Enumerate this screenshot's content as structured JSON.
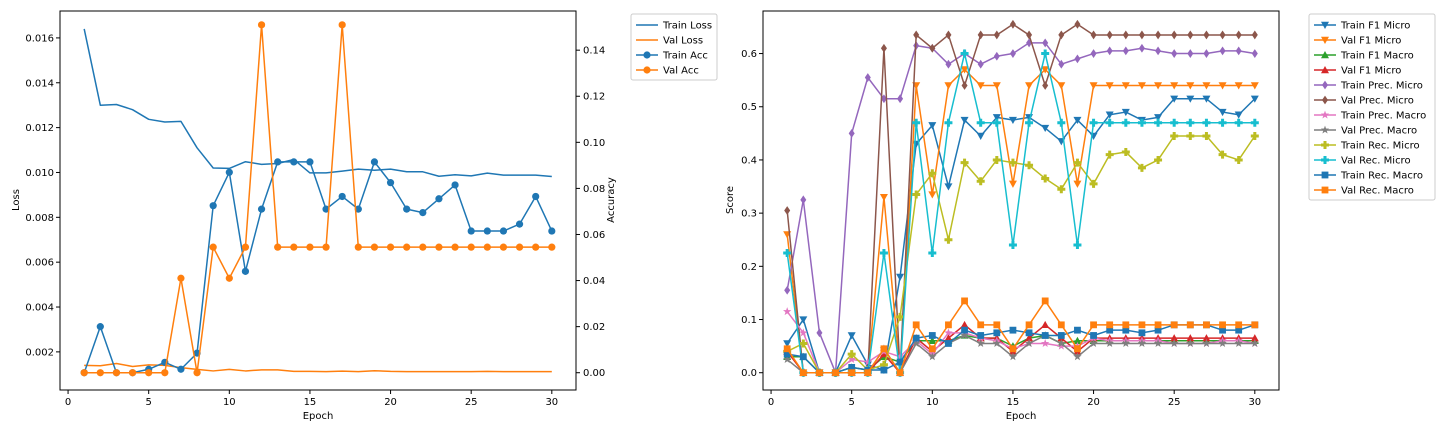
{
  "chart_data": [
    {
      "type": "line",
      "xlabel": "Epoch",
      "ylabel": "Loss",
      "y2label": "Accuracy",
      "xlim": [
        -0.5,
        31.5
      ],
      "ylim": [
        0.0003,
        0.0172
      ],
      "y2lim": [
        -0.0075,
        0.157
      ],
      "xticks": [
        0,
        5,
        10,
        15,
        20,
        25,
        30
      ],
      "yticks": [
        0.002,
        0.004,
        0.006,
        0.008,
        0.01,
        0.012,
        0.014,
        0.016
      ],
      "ytick_labels": [
        "0.002",
        "0.004",
        "0.006",
        "0.008",
        "0.010",
        "0.012",
        "0.014",
        "0.016"
      ],
      "y2ticks": [
        0.0,
        0.02,
        0.04,
        0.06,
        0.08,
        0.1,
        0.12,
        0.14
      ],
      "y2tick_labels": [
        "0.00",
        "0.02",
        "0.04",
        "0.06",
        "0.08",
        "0.10",
        "0.12",
        "0.14"
      ],
      "legend_position": "outside-top-right",
      "grid": false,
      "x": [
        1,
        2,
        3,
        4,
        5,
        6,
        7,
        8,
        9,
        10,
        11,
        12,
        13,
        14,
        15,
        16,
        17,
        18,
        19,
        20,
        21,
        22,
        23,
        24,
        25,
        26,
        27,
        28,
        29,
        30
      ],
      "series": [
        {
          "name": "Train Loss",
          "axis": "left",
          "color": "#1f77b4",
          "marker": "none",
          "values": [
            0.0164,
            0.013,
            0.01303,
            0.0128,
            0.01237,
            0.01225,
            0.01228,
            0.0111,
            0.0102,
            0.01018,
            0.01048,
            0.01036,
            0.0104,
            0.01058,
            0.00998,
            0.00998,
            0.01006,
            0.01015,
            0.0101,
            0.01015,
            0.01003,
            0.01003,
            0.00983,
            0.0099,
            0.00985,
            0.00997,
            0.00988,
            0.00988,
            0.00988,
            0.00982
          ]
        },
        {
          "name": "Val Loss",
          "axis": "left",
          "color": "#ff7f0e",
          "marker": "none",
          "values": [
            0.0014,
            0.00138,
            0.00148,
            0.00135,
            0.00142,
            0.0014,
            0.0013,
            0.00122,
            0.00115,
            0.00122,
            0.00115,
            0.0012,
            0.0012,
            0.00113,
            0.00113,
            0.00112,
            0.00114,
            0.00112,
            0.00116,
            0.00113,
            0.00112,
            0.00112,
            0.00112,
            0.00112,
            0.00112,
            0.00113,
            0.00112,
            0.00112,
            0.00112,
            0.00112
          ]
        },
        {
          "name": "Train Acc",
          "axis": "right",
          "color": "#1f77b4",
          "marker": "circle",
          "values": [
            0.0,
            0.02,
            0.0,
            0.0,
            0.0015,
            0.0045,
            0.0015,
            0.0085,
            0.0725,
            0.087,
            0.044,
            0.071,
            0.0915,
            0.0915,
            0.0915,
            0.071,
            0.0765,
            0.071,
            0.0915,
            0.0825,
            0.071,
            0.0695,
            0.0755,
            0.0815,
            0.0615,
            0.0615,
            0.0615,
            0.0645,
            0.0765,
            0.0615
          ]
        },
        {
          "name": "Val Acc",
          "axis": "right",
          "color": "#ff7f0e",
          "marker": "circle",
          "values": [
            0.0,
            0.0,
            0.0,
            0.0,
            0.0,
            0.0,
            0.041,
            0.0,
            0.0545,
            0.041,
            0.0545,
            0.151,
            0.0545,
            0.0545,
            0.0545,
            0.0545,
            0.151,
            0.0545,
            0.0545,
            0.0545,
            0.0545,
            0.0545,
            0.0545,
            0.0545,
            0.0545,
            0.0545,
            0.0545,
            0.0545,
            0.0545,
            0.0545
          ]
        }
      ]
    },
    {
      "type": "line",
      "xlabel": "Epoch",
      "ylabel": "Score",
      "xlim": [
        -0.5,
        31.5
      ],
      "ylim": [
        -0.0325,
        0.68
      ],
      "xticks": [
        0,
        5,
        10,
        15,
        20,
        25,
        30
      ],
      "yticks": [
        0.0,
        0.1,
        0.2,
        0.3,
        0.4,
        0.5,
        0.6
      ],
      "ytick_labels": [
        "0.0",
        "0.1",
        "0.2",
        "0.3",
        "0.4",
        "0.5",
        "0.6"
      ],
      "legend_position": "outside-top-right",
      "grid": false,
      "x": [
        1,
        2,
        3,
        4,
        5,
        6,
        7,
        8,
        9,
        10,
        11,
        12,
        13,
        14,
        15,
        16,
        17,
        18,
        19,
        20,
        21,
        22,
        23,
        24,
        25,
        26,
        27,
        28,
        29,
        30
      ],
      "series": [
        {
          "name": "Train F1 Micro",
          "color": "#1f77b4",
          "marker": "tri-down",
          "values": [
            0.055,
            0.1,
            0.0,
            0.0,
            0.07,
            0.015,
            0.005,
            0.18,
            0.43,
            0.465,
            0.35,
            0.475,
            0.445,
            0.48,
            0.475,
            0.48,
            0.46,
            0.435,
            0.475,
            0.445,
            0.485,
            0.49,
            0.475,
            0.48,
            0.515,
            0.515,
            0.515,
            0.49,
            0.485,
            0.515
          ]
        },
        {
          "name": "Val F1 Micro",
          "color": "#ff7f0e",
          "marker": "tri-down",
          "values": [
            0.26,
            0.0,
            0.0,
            0.0,
            0.0,
            0.0,
            0.33,
            0.0,
            0.54,
            0.335,
            0.54,
            0.57,
            0.54,
            0.54,
            0.355,
            0.54,
            0.57,
            0.54,
            0.355,
            0.54,
            0.54,
            0.54,
            0.54,
            0.54,
            0.54,
            0.54,
            0.54,
            0.54,
            0.54,
            0.54
          ]
        },
        {
          "name": "Train F1 Macro",
          "color": "#2ca02c",
          "marker": "tri-up",
          "values": [
            0.03,
            0.03,
            0.0,
            0.0,
            0.01,
            0.005,
            0.03,
            0.02,
            0.06,
            0.06,
            0.06,
            0.07,
            0.065,
            0.065,
            0.05,
            0.065,
            0.07,
            0.055,
            0.06,
            0.06,
            0.06,
            0.06,
            0.06,
            0.06,
            0.06,
            0.06,
            0.06,
            0.06,
            0.06,
            0.06
          ]
        },
        {
          "name": "Val F1 Micro",
          "color": "#d62728",
          "marker": "tri-up",
          "values": [
            0.04,
            0.0,
            0.0,
            0.0,
            0.0,
            0.0,
            0.035,
            0.0,
            0.065,
            0.04,
            0.065,
            0.09,
            0.065,
            0.065,
            0.04,
            0.065,
            0.09,
            0.065,
            0.04,
            0.065,
            0.065,
            0.065,
            0.065,
            0.065,
            0.065,
            0.065,
            0.065,
            0.065,
            0.065,
            0.065
          ]
        },
        {
          "name": "Train Prec. Micro",
          "color": "#9467bd",
          "marker": "diamond",
          "values": [
            0.155,
            0.325,
            0.075,
            0.0,
            0.45,
            0.555,
            0.515,
            0.515,
            0.615,
            0.61,
            0.58,
            0.6,
            0.58,
            0.595,
            0.6,
            0.62,
            0.62,
            0.58,
            0.59,
            0.6,
            0.605,
            0.605,
            0.61,
            0.605,
            0.6,
            0.6,
            0.6,
            0.605,
            0.605,
            0.6
          ]
        },
        {
          "name": "Val Prec. Micro",
          "color": "#8c564b",
          "marker": "diamond",
          "values": [
            0.305,
            0.0,
            0.0,
            0.0,
            0.0,
            0.0,
            0.61,
            0.0,
            0.635,
            0.61,
            0.635,
            0.54,
            0.635,
            0.635,
            0.655,
            0.635,
            0.54,
            0.635,
            0.655,
            0.635,
            0.635,
            0.635,
            0.635,
            0.635,
            0.635,
            0.635,
            0.635,
            0.635,
            0.635,
            0.635
          ]
        },
        {
          "name": "Train Prec. Macro",
          "color": "#e377c2",
          "marker": "star",
          "values": [
            0.115,
            0.075,
            0.0,
            0.0,
            0.025,
            0.02,
            0.04,
            0.03,
            0.06,
            0.035,
            0.075,
            0.075,
            0.065,
            0.06,
            0.045,
            0.055,
            0.055,
            0.05,
            0.05,
            0.065,
            0.06,
            0.06,
            0.06,
            0.06,
            0.055,
            0.055,
            0.055,
            0.06,
            0.06,
            0.055
          ]
        },
        {
          "name": "Val Prec. Macro",
          "color": "#7f7f7f",
          "marker": "star",
          "values": [
            0.025,
            0.0,
            0.0,
            0.0,
            0.0,
            0.0,
            0.045,
            0.0,
            0.055,
            0.03,
            0.055,
            0.07,
            0.055,
            0.055,
            0.03,
            0.055,
            0.07,
            0.055,
            0.03,
            0.055,
            0.055,
            0.055,
            0.055,
            0.055,
            0.055,
            0.055,
            0.055,
            0.055,
            0.055,
            0.055
          ]
        },
        {
          "name": "Train Rec. Micro",
          "color": "#bcbd22",
          "marker": "plus",
          "values": [
            0.04,
            0.055,
            0.0,
            0.0,
            0.035,
            0.005,
            0.015,
            0.105,
            0.335,
            0.375,
            0.25,
            0.395,
            0.36,
            0.4,
            0.395,
            0.39,
            0.365,
            0.345,
            0.395,
            0.355,
            0.41,
            0.415,
            0.385,
            0.4,
            0.445,
            0.445,
            0.445,
            0.41,
            0.4,
            0.445
          ]
        },
        {
          "name": "Val Rec. Micro",
          "color": "#17becf",
          "marker": "plus",
          "values": [
            0.225,
            0.0,
            0.0,
            0.0,
            0.0,
            0.0,
            0.225,
            0.0,
            0.47,
            0.225,
            0.47,
            0.6,
            0.47,
            0.47,
            0.24,
            0.47,
            0.6,
            0.47,
            0.24,
            0.47,
            0.47,
            0.47,
            0.47,
            0.47,
            0.47,
            0.47,
            0.47,
            0.47,
            0.47,
            0.47
          ]
        },
        {
          "name": "Train Rec. Macro",
          "color": "#1f77b4",
          "marker": "square",
          "values": [
            0.035,
            0.03,
            0.0,
            0.0,
            0.01,
            0.005,
            0.005,
            0.02,
            0.065,
            0.07,
            0.055,
            0.08,
            0.07,
            0.075,
            0.08,
            0.075,
            0.07,
            0.07,
            0.08,
            0.07,
            0.08,
            0.08,
            0.075,
            0.08,
            0.09,
            0.09,
            0.09,
            0.08,
            0.08,
            0.09
          ]
        },
        {
          "name": "Val Rec. Macro",
          "color": "#ff7f0e",
          "marker": "square",
          "values": [
            0.045,
            0.0,
            0.0,
            0.0,
            0.0,
            0.0,
            0.045,
            0.0,
            0.09,
            0.045,
            0.09,
            0.135,
            0.09,
            0.09,
            0.045,
            0.09,
            0.135,
            0.09,
            0.045,
            0.09,
            0.09,
            0.09,
            0.09,
            0.09,
            0.09,
            0.09,
            0.09,
            0.09,
            0.09,
            0.09
          ]
        }
      ]
    }
  ]
}
